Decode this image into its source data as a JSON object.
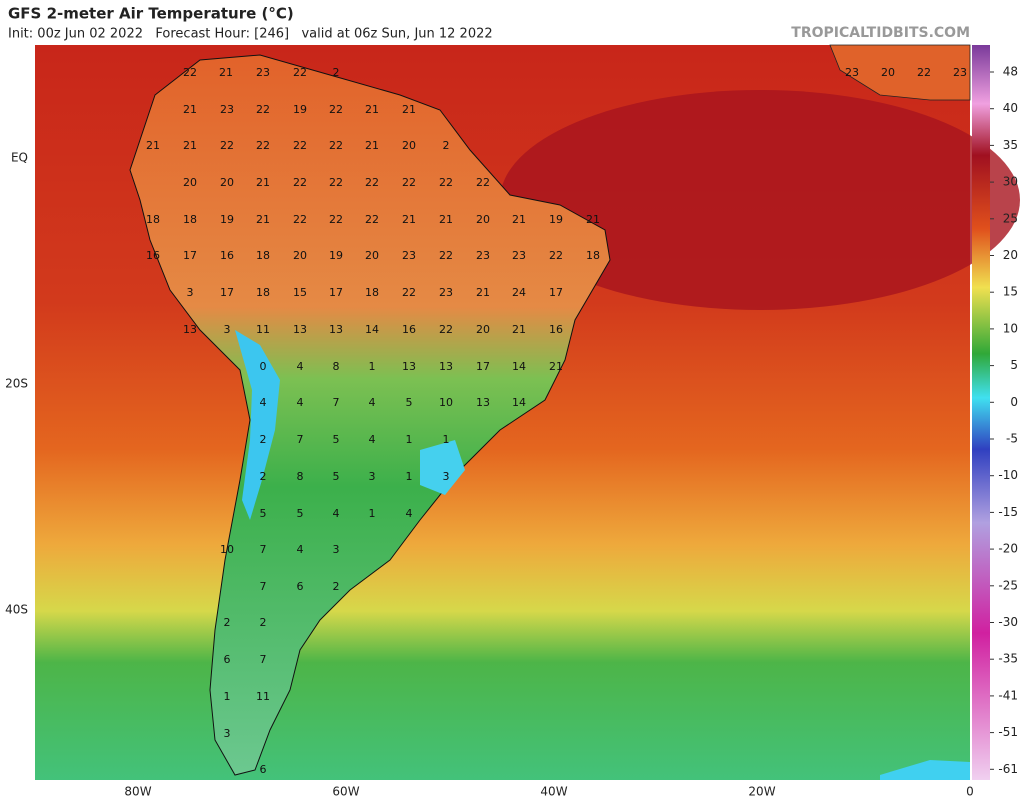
{
  "header": {
    "title": "GFS 2-meter Air Temperature (°C)",
    "subtitle": "Init: 00z Jun 02 2022   Forecast Hour: [246]   valid at 06z Sun, Jun 12 2022",
    "site": "TROPICALTIDBITS.COM"
  },
  "lat_labels": [
    "EQ",
    "20S",
    "40S"
  ],
  "lon_labels": [
    "80W",
    "60W",
    "40W",
    "20W",
    "0"
  ],
  "colorbar_ticks": [
    48,
    40,
    35,
    30,
    25,
    20,
    15,
    10,
    5,
    0,
    -5,
    -10,
    -15,
    -20,
    -25,
    -30,
    -35,
    -41,
    -51,
    -61
  ],
  "map_labels": [
    22,
    21,
    23,
    22,
    2,
    23,
    20,
    22,
    23,
    21,
    23,
    22,
    19,
    22,
    21,
    21,
    21,
    21,
    22,
    22,
    22,
    22,
    21,
    20,
    2,
    20,
    20,
    21,
    22,
    22,
    22,
    22,
    22,
    22,
    18,
    18,
    19,
    21,
    22,
    22,
    22,
    21,
    21,
    20,
    21,
    19,
    21,
    16,
    17,
    16,
    18,
    20,
    19,
    20,
    23,
    22,
    23,
    23,
    22,
    18,
    3,
    17,
    18,
    15,
    17,
    18,
    22,
    23,
    21,
    24,
    17,
    13,
    3,
    11,
    13,
    13,
    14,
    16,
    22,
    20,
    21,
    16,
    0,
    4,
    8,
    1,
    13,
    13,
    17,
    14,
    21,
    4,
    4,
    7,
    4,
    5,
    10,
    13,
    14,
    2,
    7,
    5,
    4,
    1,
    1,
    2,
    8,
    5,
    3,
    1,
    3,
    5,
    5,
    4,
    1,
    4,
    10,
    7,
    4,
    3,
    7,
    6,
    2,
    2,
    2,
    6,
    7,
    1,
    11,
    3,
    6
  ]
}
